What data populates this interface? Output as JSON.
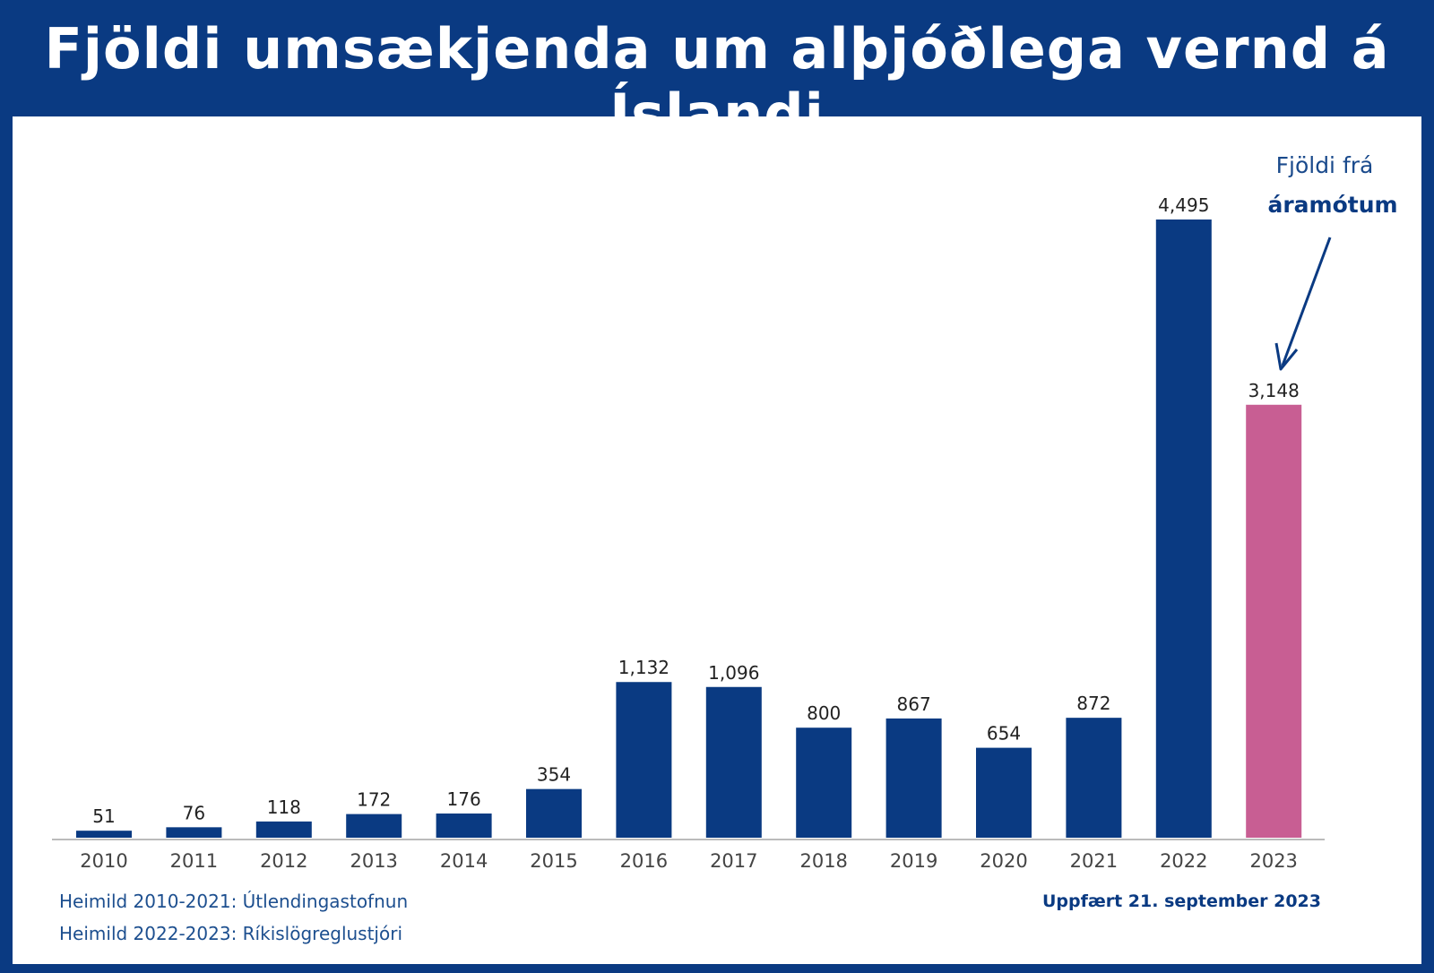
{
  "chart_data": {
    "type": "bar",
    "title": "Fjöldi umsækjenda um alþjóðlega vernd á Íslandi",
    "categories": [
      "2010",
      "2011",
      "2012",
      "2013",
      "2014",
      "2015",
      "2016",
      "2017",
      "2018",
      "2019",
      "2020",
      "2021",
      "2022",
      "2023"
    ],
    "values": [
      51,
      76,
      118,
      172,
      176,
      354,
      1132,
      1096,
      800,
      867,
      654,
      872,
      4495,
      3148
    ],
    "value_labels": [
      "51",
      "76",
      "118",
      "172",
      "176",
      "354",
      "1,132",
      "1,096",
      "800",
      "867",
      "654",
      "872",
      "4,495",
      "3,148"
    ],
    "highlight_index": 13,
    "colors": {
      "bar": "#0a3a82",
      "highlight": "#c85e93",
      "background": "#0a3a82"
    },
    "ylim": [
      0,
      4495
    ],
    "grid": false,
    "xlabel": "",
    "ylabel": "",
    "annotation": {
      "line1": "Fjöldi frá",
      "line2": "áramótum",
      "points_to": "2023"
    }
  },
  "footer": {
    "source1": "Heimild 2010-2021: Útlendingastofnun",
    "source2": "Heimild 2022-2023: Ríkislögreglustjóri",
    "updated": "Uppfært 21. september 2023"
  }
}
